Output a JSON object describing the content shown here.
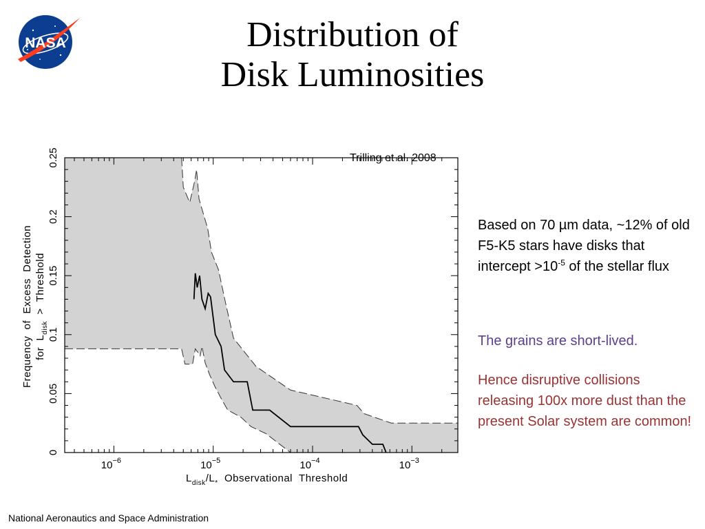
{
  "slide": {
    "logo_text": "NASA",
    "title_line1": "Distribution of",
    "title_line2": "Disk Luminosities",
    "credit": "Trilling et al. 2008",
    "body_pre": "Based on 70 µm data, ~12% of old F5-K5 stars have disks that intercept >10",
    "body_sup": "-5",
    "body_post": " of the stellar flux",
    "note1": "The grains are short-lived.",
    "note2": "Hence disruptive collisions releasing 100x more dust than the present Solar system are common!",
    "footer": "National Aeronautics and Space Administration"
  },
  "colors": {
    "band": "#d3d3d3",
    "note1": "#5b3f8c",
    "note2": "#993333",
    "logo_blue": "#0b3d91",
    "logo_red": "#fc3d21"
  },
  "chart_data": {
    "type": "line",
    "xscale": "log",
    "xlim": [
      3.2e-07,
      0.0029
    ],
    "ylim": [
      0,
      0.25
    ],
    "xticks": [
      1e-06,
      1e-05,
      0.0001,
      0.001
    ],
    "xtick_labels": [
      {
        "base": "10",
        "exp": "−6"
      },
      {
        "base": "10",
        "exp": "−5"
      },
      {
        "base": "10",
        "exp": "−4"
      },
      {
        "base": "10",
        "exp": "−3"
      }
    ],
    "yticks": [
      0,
      0.05,
      0.1,
      0.15,
      0.2,
      0.25
    ],
    "ytick_labels": [
      "0",
      "0.05",
      "0.1",
      "0.15",
      "0.2",
      "0.25"
    ],
    "xlabel": {
      "p1": "L",
      "s1": "disk",
      "p2": "/L",
      "s2": "*",
      "p3": "  Observational  Threshold"
    },
    "ylabel": {
      "line1": "Frequency  of  Excess  Detection",
      "p1": "for  L",
      "s1": "disk",
      "p2": "  >  Threshold"
    },
    "series": [
      {
        "role": "estimate",
        "x": [
          6.4e-06,
          6.6e-06,
          6.9e-06,
          7.3e-06,
          7.7e-06,
          8.3e-06,
          8.9e-06,
          9.4e-06,
          1.05e-05,
          1.2e-05,
          1.3e-05,
          1.6e-05,
          2.2e-05,
          2.5e-05,
          3.7e-05,
          6e-05,
          0.0001,
          0.0002,
          0.00029,
          0.00032,
          0.0004,
          0.00051,
          0.00055
        ],
        "y": [
          0.13,
          0.152,
          0.14,
          0.15,
          0.13,
          0.122,
          0.135,
          0.132,
          0.1,
          0.09,
          0.07,
          0.06,
          0.06,
          0.036,
          0.036,
          0.022,
          0.022,
          0.022,
          0.022,
          0.015,
          0.007,
          0.007,
          0.0
        ]
      }
    ],
    "band": {
      "upper_x": [
        3.2e-07,
        4.8e-06,
        5e-06,
        5.8e-06,
        6.5e-06,
        6.8e-06,
        7.2e-06,
        7.8e-06,
        8.8e-06,
        9.6e-06,
        1.13e-05,
        1.33e-05,
        1.6e-05,
        2.7e-05,
        6e-05,
        0.00028,
        0.00033,
        0.00062,
        0.0029
      ],
      "upper_y": [
        0.25,
        0.25,
        0.225,
        0.212,
        0.23,
        0.24,
        0.215,
        0.205,
        0.19,
        0.17,
        0.155,
        0.127,
        0.097,
        0.073,
        0.053,
        0.04,
        0.033,
        0.025,
        0.025
      ],
      "lower_x": [
        3.2e-07,
        4.8e-06,
        5.2e-06,
        6.2e-06,
        6.6e-06,
        7.4e-06,
        7.7e-06,
        8.3e-06,
        9.2e-06,
        1.04e-05,
        1.2e-05,
        1.4e-05,
        1.9e-05,
        2.4e-05,
        3.4e-05,
        6e-05,
        0.00017,
        0.00031,
        0.0004,
        0.0029
      ],
      "lower_y": [
        0.088,
        0.088,
        0.075,
        0.075,
        0.088,
        0.082,
        0.09,
        0.076,
        0.066,
        0.056,
        0.046,
        0.036,
        0.03,
        0.022,
        0.016,
        0.0,
        0.0,
        0.0,
        0.0,
        0.0
      ]
    }
  }
}
